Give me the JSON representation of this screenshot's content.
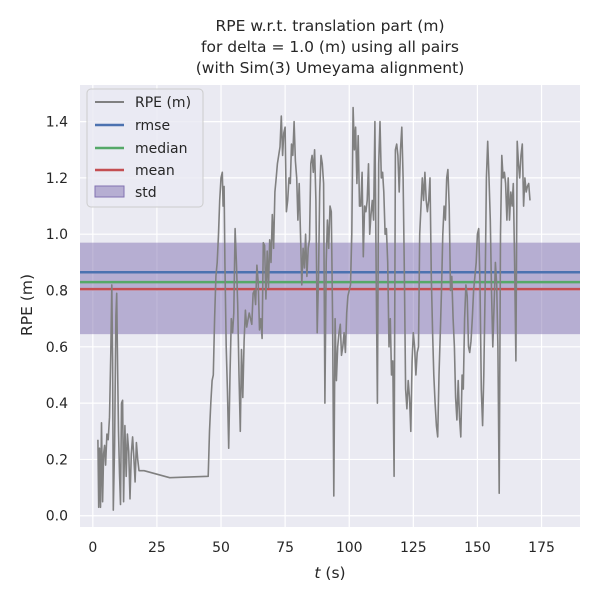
{
  "chart_data": {
    "type": "line",
    "title_lines": [
      "RPE w.r.t. translation part (m)",
      "for delta = 1.0 (m) using all pairs",
      "(with Sim(3) Umeyama alignment)"
    ],
    "xlabel_var": "t",
    "xlabel_unit": " (s)",
    "ylabel": "RPE (m)",
    "xlim": [
      -5,
      190
    ],
    "ylim": [
      -0.04,
      1.53
    ],
    "x_ticks": [
      0,
      25,
      50,
      75,
      100,
      125,
      150,
      175
    ],
    "y_ticks": [
      0.0,
      0.2,
      0.4,
      0.6,
      0.8,
      1.0,
      1.2,
      1.4
    ],
    "x_tick_labels": [
      "0",
      "25",
      "50",
      "75",
      "100",
      "125",
      "150",
      "175"
    ],
    "y_tick_labels": [
      "0.0",
      "0.2",
      "0.4",
      "0.6",
      "0.8",
      "1.0",
      "1.2",
      "1.4"
    ],
    "grid": true,
    "legend_position": "upper-left",
    "colors": {
      "background": "#eaeaf2",
      "grid": "#ffffff",
      "series": "#808080",
      "rmse": "#4c72b0",
      "median": "#55a868",
      "mean": "#c44e52",
      "std_fill": "#8172b2"
    },
    "stats": {
      "rmse": 0.865,
      "median": 0.83,
      "mean": 0.805,
      "std_low": 0.645,
      "std_high": 0.97
    },
    "legend": {
      "series": "RPE (m)",
      "rmse": "rmse",
      "median": "median",
      "mean": "mean",
      "std": "std"
    },
    "series": [
      {
        "name": "RPE (m)",
        "points": [
          [
            2,
            0.27
          ],
          [
            2.3,
            0.03
          ],
          [
            2.6,
            0.24
          ],
          [
            3,
            0.03
          ],
          [
            3.4,
            0.33
          ],
          [
            3.8,
            0.05
          ],
          [
            4.2,
            0.22
          ],
          [
            4.6,
            0.25
          ],
          [
            5,
            0.18
          ],
          [
            5.5,
            0.29
          ],
          [
            6,
            0.27
          ],
          [
            6.5,
            0.35
          ],
          [
            7,
            0.58
          ],
          [
            7.4,
            0.82
          ],
          [
            7.7,
            0.55
          ],
          [
            8,
            0.02
          ],
          [
            8.5,
            0.25
          ],
          [
            9,
            0.71
          ],
          [
            9.3,
            0.79
          ],
          [
            9.7,
            0.5
          ],
          [
            10,
            0.3
          ],
          [
            10.4,
            0.15
          ],
          [
            10.8,
            0.04
          ],
          [
            11.2,
            0.4
          ],
          [
            11.6,
            0.41
          ],
          [
            12,
            0.05
          ],
          [
            12.5,
            0.32
          ],
          [
            13,
            0.14
          ],
          [
            13.5,
            0.29
          ],
          [
            14,
            0.23
          ],
          [
            14.5,
            0.06
          ],
          [
            15,
            0.22
          ],
          [
            15.5,
            0.28
          ],
          [
            16,
            0.21
          ],
          [
            16.5,
            0.12
          ],
          [
            17,
            0.26
          ],
          [
            17.5,
            0.2
          ],
          [
            18,
            0.16
          ],
          [
            20,
            0.16
          ],
          [
            30,
            0.135
          ],
          [
            45,
            0.14
          ],
          [
            45.5,
            0.3
          ],
          [
            46,
            0.4
          ],
          [
            46.5,
            0.48
          ],
          [
            47,
            0.5
          ],
          [
            47.5,
            0.7
          ],
          [
            48,
            0.85
          ],
          [
            48.5,
            0.9
          ],
          [
            49,
            1.0
          ],
          [
            49.5,
            1.12
          ],
          [
            50,
            1.2
          ],
          [
            50.5,
            1.22
          ],
          [
            50.8,
            1.1
          ],
          [
            51.2,
            1.17
          ],
          [
            51.5,
            0.9
          ],
          [
            52,
            0.6
          ],
          [
            52.5,
            0.45
          ],
          [
            53,
            0.24
          ],
          [
            53.5,
            0.5
          ],
          [
            54,
            0.7
          ],
          [
            54.5,
            0.65
          ],
          [
            55,
            0.72
          ],
          [
            55.5,
            1.02
          ],
          [
            56,
            0.9
          ],
          [
            56.5,
            0.75
          ],
          [
            57,
            0.5
          ],
          [
            57.5,
            0.3
          ],
          [
            58,
            0.59
          ],
          [
            58.5,
            0.42
          ],
          [
            59,
            0.62
          ],
          [
            59.5,
            0.73
          ],
          [
            60,
            0.67
          ],
          [
            61,
            0.72
          ],
          [
            62,
            0.68
          ],
          [
            62.5,
            0.79
          ],
          [
            63,
            0.8
          ],
          [
            63.5,
            0.75
          ],
          [
            64,
            0.89
          ],
          [
            64.5,
            0.83
          ],
          [
            65,
            0.66
          ],
          [
            65.5,
            0.7
          ],
          [
            66,
            0.63
          ],
          [
            66.5,
            0.97
          ],
          [
            67,
            0.96
          ],
          [
            67.5,
            0.77
          ],
          [
            68,
            0.94
          ],
          [
            68.5,
            0.81
          ],
          [
            69,
            0.98
          ],
          [
            69.5,
            0.9
          ],
          [
            70,
            1.07
          ],
          [
            70.5,
            0.95
          ],
          [
            71,
            1.15
          ],
          [
            71.5,
            1.2
          ],
          [
            72,
            1.25
          ],
          [
            72.5,
            1.28
          ],
          [
            73,
            1.31
          ],
          [
            73.5,
            1.42
          ],
          [
            74,
            1.28
          ],
          [
            74.5,
            1.36
          ],
          [
            75,
            1.38
          ],
          [
            75.5,
            1.08
          ],
          [
            76,
            1.12
          ],
          [
            76.5,
            1.2
          ],
          [
            77,
            1.18
          ],
          [
            77.5,
            1.32
          ],
          [
            78,
            1.28
          ],
          [
            78.5,
            1.4
          ],
          [
            79,
            1.26
          ],
          [
            79.5,
            1.2
          ],
          [
            80,
            1.05
          ],
          [
            80.5,
            1.18
          ],
          [
            81,
            1.0
          ],
          [
            81.5,
            0.82
          ],
          [
            82,
            0.95
          ],
          [
            82.5,
            0.88
          ],
          [
            83,
            1.0
          ],
          [
            83.5,
            0.85
          ],
          [
            84,
            0.95
          ],
          [
            84.5,
            0.98
          ],
          [
            85,
            1.25
          ],
          [
            85.5,
            1.28
          ],
          [
            86,
            1.22
          ],
          [
            86.5,
            1.3
          ],
          [
            87,
            1.12
          ],
          [
            87.5,
            0.65
          ],
          [
            88,
            0.85
          ],
          [
            88.5,
            1.15
          ],
          [
            89,
            1.28
          ],
          [
            89.5,
            1.25
          ],
          [
            90,
            1.18
          ],
          [
            90.5,
            0.4
          ],
          [
            91,
            0.9
          ],
          [
            91.5,
            1.05
          ],
          [
            92,
            0.95
          ],
          [
            92.5,
            1.1
          ],
          [
            93,
            1.08
          ],
          [
            93.5,
            0.7
          ],
          [
            94,
            0.07
          ],
          [
            94.5,
            0.7
          ],
          [
            95,
            0.48
          ],
          [
            95.5,
            0.6
          ],
          [
            96,
            0.65
          ],
          [
            96.5,
            0.68
          ],
          [
            97,
            0.57
          ],
          [
            97.5,
            0.6
          ],
          [
            98,
            0.65
          ],
          [
            98.5,
            0.58
          ],
          [
            99,
            0.72
          ],
          [
            99.5,
            0.78
          ],
          [
            100,
            0.8
          ],
          [
            100.5,
            0.82
          ],
          [
            101,
            1.0
          ],
          [
            101.5,
            1.45
          ],
          [
            102,
            1.3
          ],
          [
            102.5,
            1.38
          ],
          [
            103,
            1.18
          ],
          [
            103.5,
            1.35
          ],
          [
            104,
            1.1
          ],
          [
            104.5,
            1.1
          ],
          [
            105,
            1.22
          ],
          [
            105.5,
            0.92
          ],
          [
            106,
            1.1
          ],
          [
            106.5,
            1.08
          ],
          [
            107,
            1.12
          ],
          [
            107.5,
            1.25
          ],
          [
            108,
            1.0
          ],
          [
            108.5,
            1.07
          ],
          [
            109,
            1.12
          ],
          [
            109.5,
            1.05
          ],
          [
            110,
            1.4
          ],
          [
            110.5,
            0.85
          ],
          [
            111,
            0.4
          ],
          [
            111.5,
            1.25
          ],
          [
            112,
            1.4
          ],
          [
            112.5,
            1.2
          ],
          [
            113,
            1.22
          ],
          [
            113.5,
            1.15
          ],
          [
            114,
            1.0
          ],
          [
            114.5,
            1.02
          ],
          [
            115,
            0.9
          ],
          [
            115.5,
            0.6
          ],
          [
            116,
            0.7
          ],
          [
            116.5,
            0.5
          ],
          [
            117,
            0.55
          ],
          [
            117.5,
            0.14
          ],
          [
            118,
            1.3
          ],
          [
            118.5,
            1.32
          ],
          [
            119,
            1.28
          ],
          [
            119.5,
            1.15
          ],
          [
            120,
            1.3
          ],
          [
            120.5,
            1.38
          ],
          [
            121,
            1.2
          ],
          [
            121.5,
            0.85
          ],
          [
            122,
            0.45
          ],
          [
            122.5,
            0.38
          ],
          [
            123,
            0.48
          ],
          [
            123.5,
            0.42
          ],
          [
            124,
            0.3
          ],
          [
            124.5,
            0.55
          ],
          [
            125,
            0.65
          ],
          [
            125.5,
            0.6
          ],
          [
            126,
            0.5
          ],
          [
            126.5,
            0.58
          ],
          [
            127,
            0.6
          ],
          [
            127.5,
            1.0
          ],
          [
            128,
            1.1
          ],
          [
            128.5,
            1.2
          ],
          [
            129,
            1.12
          ],
          [
            129.5,
            1.22
          ],
          [
            130,
            1.12
          ],
          [
            130.5,
            1.08
          ],
          [
            131,
            1.12
          ],
          [
            131.5,
            1.2
          ],
          [
            132,
            0.85
          ],
          [
            132.5,
            0.65
          ],
          [
            133,
            0.5
          ],
          [
            133.5,
            0.4
          ],
          [
            134,
            0.32
          ],
          [
            134.5,
            0.28
          ],
          [
            135,
            0.5
          ],
          [
            135.5,
            0.65
          ],
          [
            136,
            0.8
          ],
          [
            136.5,
            1.0
          ],
          [
            137,
            1.1
          ],
          [
            137.5,
            1.05
          ],
          [
            138,
            1.2
          ],
          [
            138.5,
            1.23
          ],
          [
            139,
            1.1
          ],
          [
            139.5,
            0.8
          ],
          [
            140,
            0.85
          ],
          [
            140.5,
            0.7
          ],
          [
            141,
            0.6
          ],
          [
            141.5,
            0.42
          ],
          [
            142,
            0.34
          ],
          [
            142.5,
            0.48
          ],
          [
            143,
            0.35
          ],
          [
            143.5,
            0.28
          ],
          [
            144,
            0.5
          ],
          [
            144.5,
            0.45
          ],
          [
            145,
            0.7
          ],
          [
            145.5,
            0.82
          ],
          [
            146,
            0.78
          ],
          [
            146.5,
            0.6
          ],
          [
            147,
            0.58
          ],
          [
            147.5,
            0.62
          ],
          [
            148,
            0.7
          ],
          [
            148.5,
            0.8
          ],
          [
            149,
            0.85
          ],
          [
            149.5,
            0.9
          ],
          [
            150,
            1.0
          ],
          [
            150.5,
            1.02
          ],
          [
            151,
            0.82
          ],
          [
            151.5,
            0.45
          ],
          [
            152,
            0.32
          ],
          [
            152.5,
            0.5
          ],
          [
            153,
            0.8
          ],
          [
            153.5,
            1.2
          ],
          [
            154,
            1.33
          ],
          [
            154.5,
            1.2
          ],
          [
            155,
            1.05
          ],
          [
            155.5,
            0.8
          ],
          [
            156,
            0.6
          ],
          [
            156.5,
            0.75
          ],
          [
            157,
            0.9
          ],
          [
            157.5,
            0.82
          ],
          [
            158,
            0.6
          ],
          [
            158.5,
            0.08
          ],
          [
            159,
            1.0
          ],
          [
            159.5,
            1.28
          ],
          [
            160,
            1.2
          ],
          [
            160.5,
            1.22
          ],
          [
            161,
            1.18
          ],
          [
            161.5,
            1.05
          ],
          [
            162,
            1.2
          ],
          [
            162.5,
            1.05
          ],
          [
            163,
            1.15
          ],
          [
            163.5,
            1.1
          ],
          [
            164,
            1.18
          ],
          [
            164.5,
            0.9
          ],
          [
            165,
            0.55
          ],
          [
            165.5,
            1.33
          ],
          [
            166,
            1.25
          ],
          [
            166.5,
            1.2
          ],
          [
            167,
            1.28
          ],
          [
            167.5,
            1.32
          ],
          [
            168,
            1.1
          ],
          [
            168.5,
            1.2
          ],
          [
            169,
            1.15
          ],
          [
            169.5,
            1.17
          ],
          [
            170,
            1.18
          ],
          [
            170.5,
            1.12
          ]
        ]
      }
    ]
  }
}
